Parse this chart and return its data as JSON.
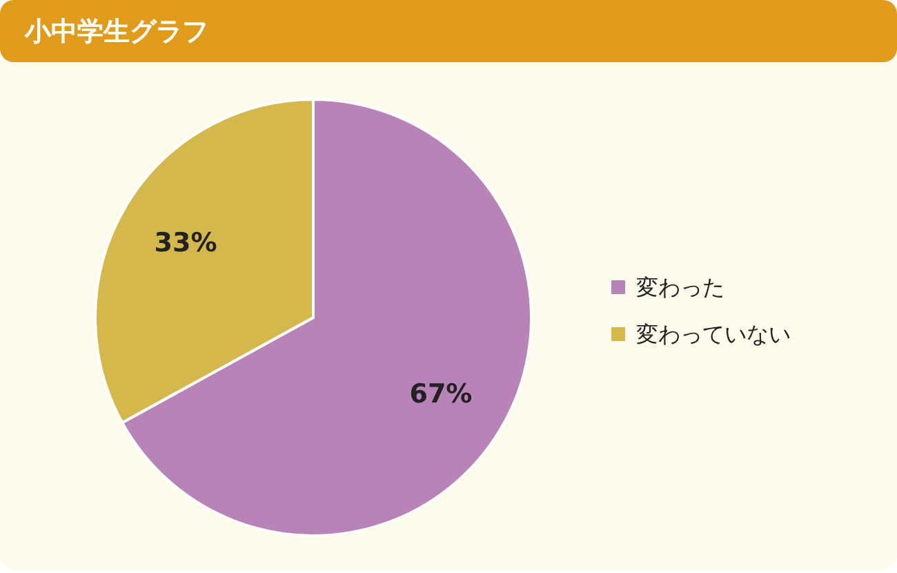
{
  "chart_data": {
    "type": "pie",
    "title": "小中学生グラフ",
    "categories": [
      "変わった",
      "変わっていない"
    ],
    "values": [
      67,
      33
    ],
    "colors": [
      "#b884b8",
      "#d4b84c"
    ],
    "value_labels": [
      "67%",
      "33%"
    ],
    "legend": "right"
  }
}
